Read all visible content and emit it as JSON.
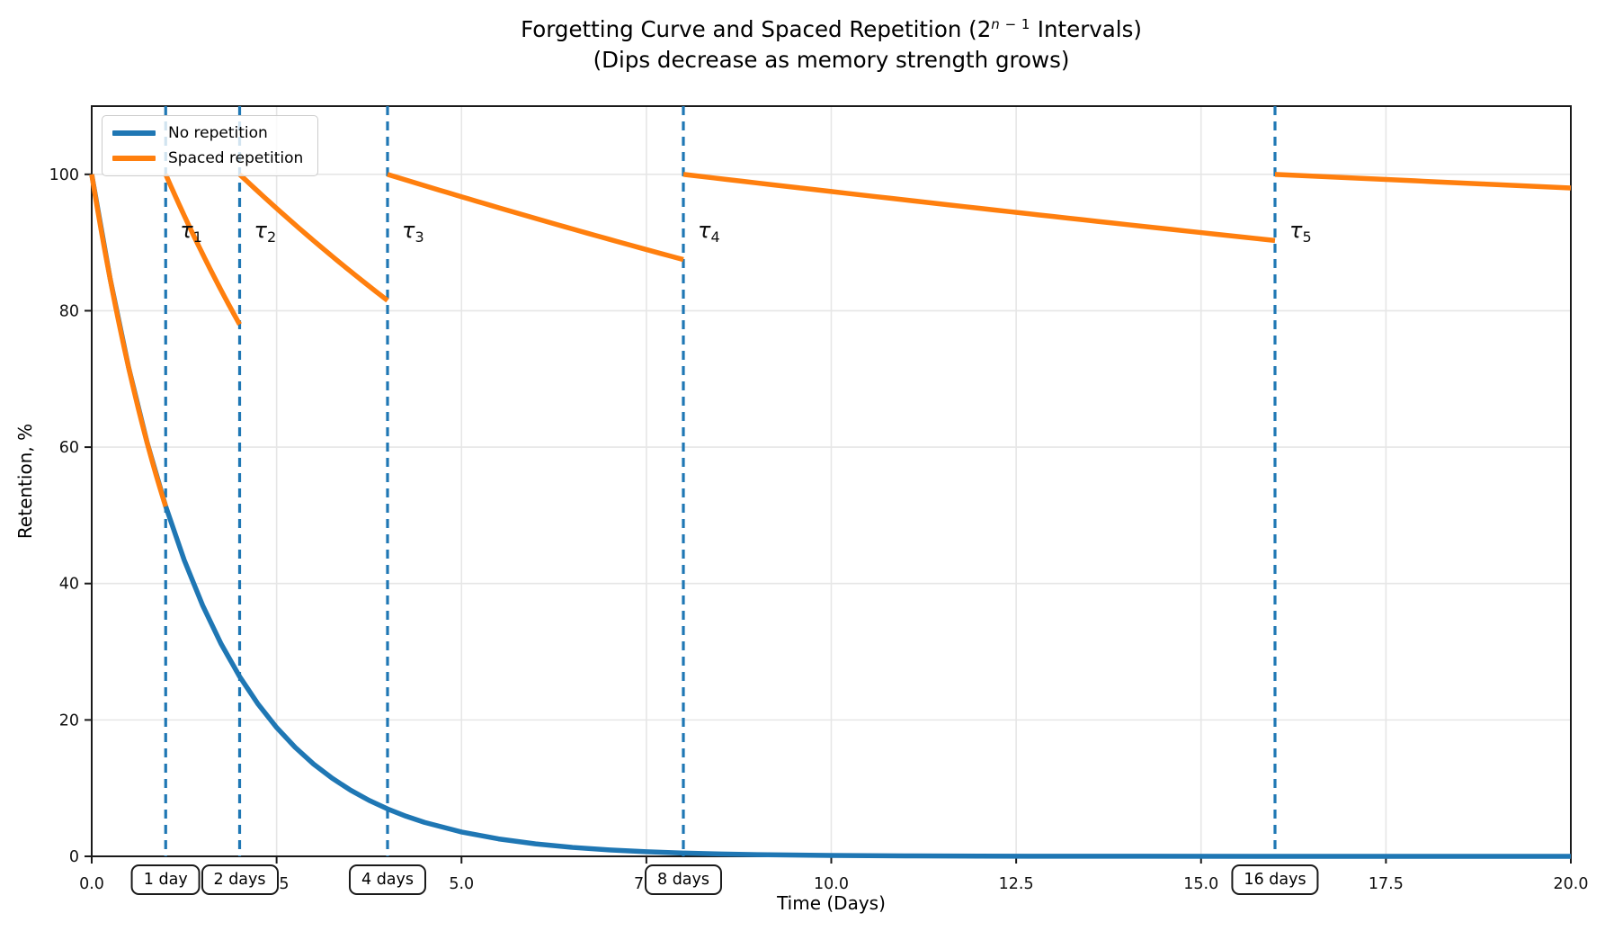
{
  "title": {
    "line1_pre": "Forgetting Curve and Spaced Repetition (2",
    "sup_var": "n",
    "sup_rest": " − 1",
    "line1_post": " Intervals)",
    "line2": "(Dips decrease as memory strength grows)"
  },
  "legend": {
    "items": [
      {
        "label": "No repetition",
        "color": "#1f77b4"
      },
      {
        "label": "Spaced repetition",
        "color": "#ff7f0e"
      }
    ]
  },
  "chart_data": {
    "type": "line",
    "title": "Forgetting Curve and Spaced Repetition (2^(n-1) Intervals)",
    "subtitle": "(Dips decrease as memory strength grows)",
    "xlabel": "Time (Days)",
    "ylabel": "Retention, %",
    "xlim": [
      0,
      20
    ],
    "ylim": [
      0,
      110
    ],
    "grid": true,
    "legend_position": "upper left",
    "x_ticks": [
      {
        "v": 0,
        "label": "0.0"
      },
      {
        "v": 2.5,
        "label": "2.5"
      },
      {
        "v": 5,
        "label": "5.0"
      },
      {
        "v": 7.5,
        "label": "7.5"
      },
      {
        "v": 10,
        "label": "10.0"
      },
      {
        "v": 12.5,
        "label": "12.5"
      },
      {
        "v": 15,
        "label": "15.0"
      },
      {
        "v": 17.5,
        "label": "17.5"
      },
      {
        "v": 20,
        "label": "20.0"
      }
    ],
    "y_ticks": [
      {
        "v": 0,
        "label": "0"
      },
      {
        "v": 20,
        "label": "20"
      },
      {
        "v": 40,
        "label": "40"
      },
      {
        "v": 60,
        "label": "60"
      },
      {
        "v": 80,
        "label": "80"
      },
      {
        "v": 100,
        "label": "100"
      }
    ],
    "grid_color": "#e6e6e6",
    "spine_color": "#1a1a1a",
    "review_line_color": "#1f77b4",
    "series": [
      {
        "name": "No repetition",
        "color": "#1f77b4",
        "style": "solid",
        "points": [
          [
            0,
            100
          ],
          [
            0.25,
            84.65
          ],
          [
            0.5,
            71.65
          ],
          [
            0.75,
            60.65
          ],
          [
            1,
            51.34
          ],
          [
            1.25,
            43.46
          ],
          [
            1.5,
            36.79
          ],
          [
            1.75,
            31.14
          ],
          [
            2,
            26.36
          ],
          [
            2.25,
            22.31
          ],
          [
            2.5,
            18.89
          ],
          [
            2.75,
            15.99
          ],
          [
            3,
            13.53
          ],
          [
            3.25,
            11.46
          ],
          [
            3.5,
            9.7
          ],
          [
            3.75,
            8.21
          ],
          [
            4,
            6.95
          ],
          [
            4.25,
            5.88
          ],
          [
            4.5,
            4.98
          ],
          [
            5,
            3.57
          ],
          [
            5.5,
            2.56
          ],
          [
            6,
            1.83
          ],
          [
            6.5,
            1.31
          ],
          [
            7,
            0.94
          ],
          [
            7.5,
            0.67
          ],
          [
            8,
            0.48
          ],
          [
            8.5,
            0.35
          ],
          [
            9,
            0.25
          ],
          [
            10,
            0.13
          ],
          [
            11,
            0.07
          ],
          [
            12,
            0.03
          ],
          [
            13,
            0.02
          ],
          [
            14,
            0.01
          ],
          [
            16,
            0
          ],
          [
            18,
            0
          ],
          [
            20,
            0
          ]
        ]
      },
      {
        "name": "Spaced repetition",
        "color": "#ff7f0e",
        "style": "solid",
        "segments": [
          {
            "t_start": 0,
            "t_end": 1,
            "r_start": 100,
            "r_end": 51.3
          },
          {
            "t_start": 1,
            "t_end": 2,
            "r_start": 100,
            "r_end": 78
          },
          {
            "t_start": 2,
            "t_end": 4,
            "r_start": 100,
            "r_end": 81.5
          },
          {
            "t_start": 4,
            "t_end": 8,
            "r_start": 100,
            "r_end": 87.5
          },
          {
            "t_start": 8,
            "t_end": 16,
            "r_start": 100,
            "r_end": 90.3
          },
          {
            "t_start": 16,
            "t_end": 20,
            "r_start": 100,
            "r_end": 98
          }
        ]
      }
    ],
    "review_markers": [
      {
        "t": 1,
        "tau": "τ",
        "sub": "1",
        "box_label": "1 day"
      },
      {
        "t": 2,
        "tau": "τ",
        "sub": "2",
        "box_label": "2 days"
      },
      {
        "t": 4,
        "tau": "τ",
        "sub": "3",
        "box_label": "4 days"
      },
      {
        "t": 8,
        "tau": "τ",
        "sub": "4",
        "box_label": "8 days"
      },
      {
        "t": 16,
        "tau": "τ",
        "sub": "5",
        "box_label": "16 days"
      }
    ]
  }
}
